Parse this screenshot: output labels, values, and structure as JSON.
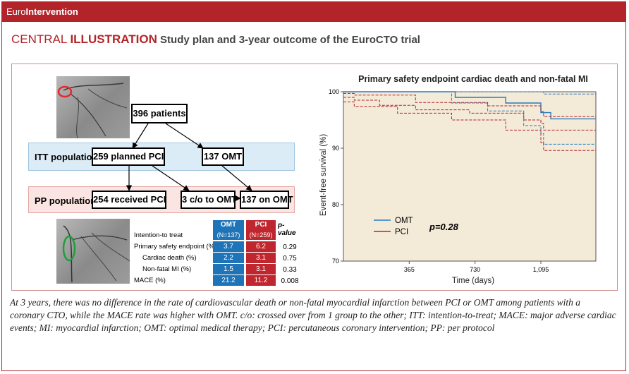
{
  "header": {
    "brand_a": "Euro",
    "brand_b": "Intervention"
  },
  "title": {
    "part1": "CENTRAL ",
    "part2": "ILLUSTRATION",
    "part3": " Study plan and 3-year outcome of the EuroCTO trial"
  },
  "flow": {
    "total": "396 patients",
    "itt_label": "ITT population",
    "pp_label": "PP population",
    "planned_pci": "259 planned PCI",
    "omt_137": "137 OMT",
    "received_pci": "254 received PCI",
    "crossover": "3 c/o  to OMT",
    "on_omt": "137 on OMT"
  },
  "table": {
    "col_omt": "OMT",
    "col_pci": "PCI",
    "col_p": "p-value",
    "n_omt": "(N=137)",
    "n_pci": "(N=259)",
    "rows": [
      {
        "label": "Intention-to treat",
        "omt": "",
        "pci": "",
        "p": ""
      },
      {
        "label": "Primary safety endpoint (%)",
        "omt": "3.7",
        "pci": "6.2",
        "p": "0.29"
      },
      {
        "label": "Cardiac death (%)",
        "omt": "2.2",
        "pci": "3.1",
        "p": "0.75"
      },
      {
        "label": "Non-fatal MI (%)",
        "omt": "1.5",
        "pci": "3.1",
        "p": "0.33"
      },
      {
        "label": "MACE (%)",
        "omt": "21.2",
        "pci": "11.2",
        "p": "0.008"
      }
    ]
  },
  "chart_data": {
    "type": "line",
    "title": "Primary safety endpoint cardiac death and non-fatal MI",
    "xlabel": "Time (days)",
    "ylabel": "Event-free survival (%)",
    "xlim": [
      0,
      1400
    ],
    "ylim": [
      70,
      100
    ],
    "xticks": [
      365,
      730,
      1095
    ],
    "xtick_labels": [
      "365",
      "730",
      "1,095"
    ],
    "yticks": [
      70,
      80,
      90,
      100
    ],
    "legend": [
      "OMT",
      "PCI"
    ],
    "annotation": "p=0.28",
    "colors": {
      "omt": "#2a7bbf",
      "pci": "#b3242a",
      "bg": "#f3ead8"
    },
    "series": [
      {
        "name": "OMT",
        "x": [
          0,
          600,
          620,
          900,
          1095,
          1150,
          1400
        ],
        "y": [
          100,
          100,
          99.0,
          98.0,
          96.3,
          95.2,
          95.2
        ]
      },
      {
        "name": "PCI",
        "x": [
          0,
          60,
          200,
          400,
          700,
          1000,
          1095,
          1110,
          1400
        ],
        "y": [
          99.0,
          98.5,
          97.6,
          96.8,
          96.2,
          95.0,
          94.4,
          93.2,
          93.2
        ]
      },
      {
        "name": "OMT CI upper",
        "x": [
          0,
          620,
          1110,
          1400
        ],
        "y": [
          100,
          100,
          99.6,
          99.6
        ]
      },
      {
        "name": "OMT CI lower",
        "x": [
          0,
          600,
          800,
          1000,
          1095,
          1110,
          1400
        ],
        "y": [
          100,
          98.0,
          96.6,
          94.0,
          92.6,
          90.7,
          90.7
        ]
      },
      {
        "name": "PCI CI upper",
        "x": [
          0,
          60,
          400,
          800,
          1095,
          1110,
          1400
        ],
        "y": [
          99.7,
          99.4,
          98.1,
          97.5,
          96.5,
          95.6,
          95.6
        ]
      },
      {
        "name": "PCI CI lower",
        "x": [
          0,
          60,
          300,
          600,
          900,
          1095,
          1110,
          1400
        ],
        "y": [
          98.2,
          97.4,
          96.2,
          95.0,
          93.2,
          91.0,
          89.6,
          89.6
        ]
      }
    ]
  },
  "caption": "At 3 years, there was no difference in the rate of cardiovascular death or non-fatal myocardial infarction between PCI or OMT among patients with a coronary CTO, while the MACE rate was higher with OMT. c/o: crossed over from 1 group to the other; ITT: intention-to-treat; MACE: major adverse cardiac events; MI: myocardial infarction; OMT: optimal medical therapy; PCI: percutaneous coronary intervention; PP: per protocol"
}
